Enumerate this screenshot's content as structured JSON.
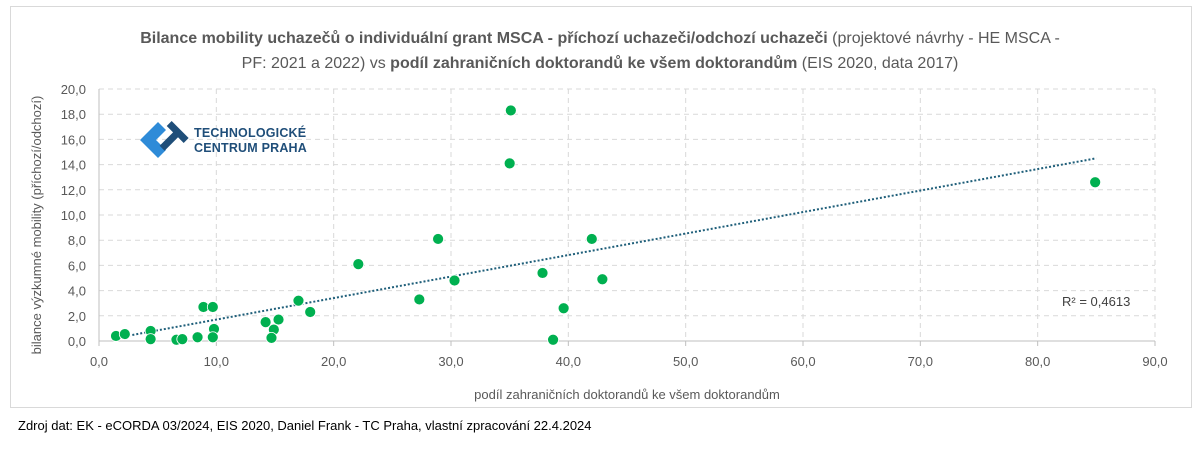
{
  "title": {
    "bold1": "Bilance mobility uchazečů o individuální grant MSCA - příchozí uchazeči/odchozí uchazeči",
    "normal1": " (projektové návrhy - HE MSCA -",
    "normal2": "PF: 2021 a 2022) vs ",
    "bold2": "podíl zahraničních doktorandů ke všem doktorandům",
    "normal3": " (EIS 2020, data 2017)"
  },
  "logo": {
    "line1": "TECHNOLOGICKÉ",
    "line2": "CENTRUM PRAHA",
    "colors": [
      "#1f4e79",
      "#2e8bd8"
    ]
  },
  "source": "Zdroj dat: EK - eCORDA 03/2024, EIS 2020, Daniel Frank - TC Praha, vlastní zpracování 22.4.2024",
  "chart_data": {
    "type": "scatter",
    "xlabel": "podíl zahraničních doktorandů ke všem doktorandům",
    "ylabel": "bilance výzkumné mobility (příchozí/odchozí)",
    "xlim": [
      0,
      90
    ],
    "ylim": [
      0,
      20
    ],
    "xticks": [
      "0,0",
      "10,0",
      "20,0",
      "30,0",
      "40,0",
      "50,0",
      "60,0",
      "70,0",
      "80,0",
      "90,0"
    ],
    "yticks": [
      "0,0",
      "2,0",
      "4,0",
      "6,0",
      "8,0",
      "10,0",
      "12,0",
      "14,0",
      "16,0",
      "18,0",
      "20,0"
    ],
    "grid": true,
    "marker_color": "#00b050",
    "trendline": {
      "type": "linear",
      "color": "#1f5f7a",
      "x_range": [
        1.5,
        85
      ],
      "y_range": [
        0.25,
        14.5
      ],
      "label": "R² = 0,4613"
    },
    "points": [
      [
        1.45,
        0.4
      ],
      [
        2.2,
        0.55
      ],
      [
        4.4,
        0.8
      ],
      [
        4.4,
        0.15
      ],
      [
        6.6,
        0.1
      ],
      [
        7.1,
        0.15
      ],
      [
        8.4,
        0.3
      ],
      [
        8.9,
        2.7
      ],
      [
        9.7,
        2.7
      ],
      [
        9.8,
        0.95
      ],
      [
        9.7,
        0.3
      ],
      [
        14.2,
        1.5
      ],
      [
        14.9,
        0.9
      ],
      [
        15.3,
        1.7
      ],
      [
        14.7,
        0.25
      ],
      [
        17.0,
        3.2
      ],
      [
        18.0,
        2.3
      ],
      [
        22.1,
        6.1
      ],
      [
        27.3,
        3.3
      ],
      [
        28.9,
        8.1
      ],
      [
        30.3,
        4.8
      ],
      [
        35.1,
        18.3
      ],
      [
        35.0,
        14.1
      ],
      [
        37.8,
        5.4
      ],
      [
        38.7,
        0.1
      ],
      [
        39.6,
        2.6
      ],
      [
        42.0,
        8.1
      ],
      [
        42.9,
        4.9
      ],
      [
        84.9,
        12.6
      ]
    ]
  }
}
